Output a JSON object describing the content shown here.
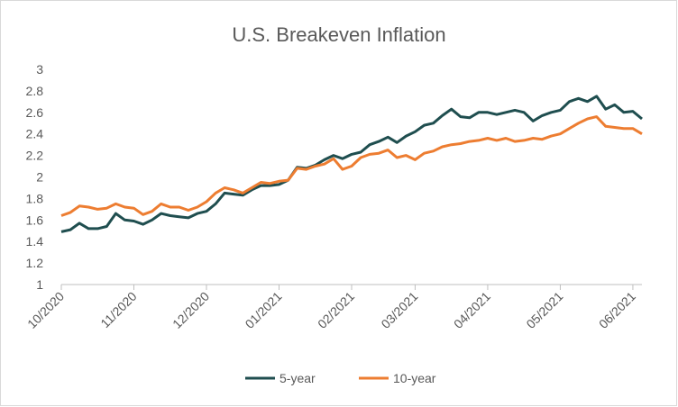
{
  "chart_data": {
    "type": "line",
    "title": "U.S. Breakeven Inflation",
    "categories": [
      "10/2020",
      null,
      null,
      null,
      null,
      null,
      null,
      null,
      "11/2020",
      null,
      null,
      null,
      null,
      null,
      null,
      null,
      "12/2020",
      null,
      null,
      null,
      null,
      null,
      null,
      null,
      "01/2021",
      null,
      null,
      null,
      null,
      null,
      null,
      null,
      "02/2021",
      null,
      null,
      null,
      null,
      null,
      null,
      "03/2021",
      null,
      null,
      null,
      null,
      null,
      null,
      null,
      "04/2021",
      null,
      null,
      null,
      null,
      null,
      null,
      null,
      "05/2021",
      null,
      null,
      null,
      null,
      null,
      null,
      null,
      "06/2021",
      null
    ],
    "series": [
      {
        "name": "5-year",
        "color": "#1f4e4f",
        "values": [
          1.49,
          1.51,
          1.57,
          1.52,
          1.52,
          1.54,
          1.66,
          1.6,
          1.59,
          1.56,
          1.6,
          1.66,
          1.64,
          1.63,
          1.62,
          1.66,
          1.68,
          1.75,
          1.85,
          1.84,
          1.83,
          1.88,
          1.92,
          1.92,
          1.93,
          1.97,
          2.09,
          2.08,
          2.11,
          2.16,
          2.2,
          2.17,
          2.21,
          2.23,
          2.3,
          2.33,
          2.37,
          2.32,
          2.38,
          2.42,
          2.48,
          2.5,
          2.57,
          2.63,
          2.56,
          2.55,
          2.6,
          2.6,
          2.58,
          2.6,
          2.62,
          2.6,
          2.52,
          2.57,
          2.6,
          2.62,
          2.7,
          2.73,
          2.7,
          2.75,
          2.63,
          2.67,
          2.6,
          2.61,
          2.54
        ]
      },
      {
        "name": "10-year",
        "color": "#ed7d31",
        "values": [
          1.64,
          1.67,
          1.73,
          1.72,
          1.7,
          1.71,
          1.75,
          1.72,
          1.71,
          1.65,
          1.68,
          1.75,
          1.72,
          1.72,
          1.69,
          1.72,
          1.77,
          1.85,
          1.9,
          1.88,
          1.85,
          1.9,
          1.95,
          1.94,
          1.96,
          1.97,
          2.08,
          2.07,
          2.1,
          2.12,
          2.17,
          2.07,
          2.1,
          2.18,
          2.21,
          2.22,
          2.25,
          2.18,
          2.2,
          2.16,
          2.22,
          2.24,
          2.28,
          2.3,
          2.31,
          2.33,
          2.34,
          2.36,
          2.34,
          2.36,
          2.33,
          2.34,
          2.36,
          2.35,
          2.38,
          2.4,
          2.45,
          2.5,
          2.54,
          2.56,
          2.47,
          2.46,
          2.45,
          2.45,
          2.4
        ]
      }
    ],
    "ylim": [
      1,
      3
    ],
    "yticks": [
      1,
      1.2,
      1.4,
      1.6,
      1.8,
      2,
      2.2,
      2.4,
      2.6,
      2.8,
      3
    ],
    "grid": false,
    "legend": "bottom"
  }
}
